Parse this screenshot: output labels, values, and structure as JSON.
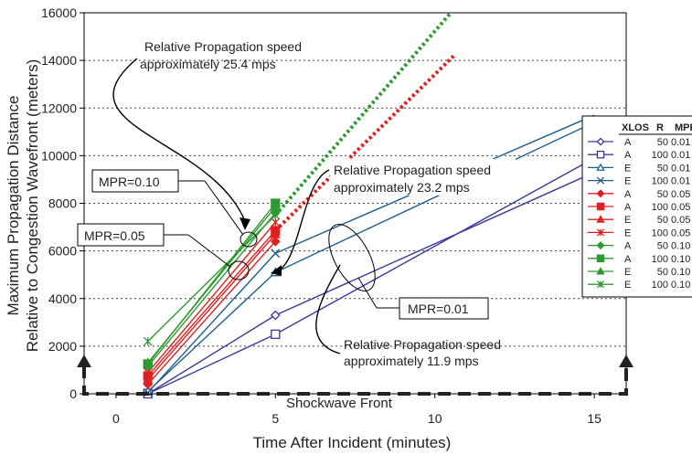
{
  "chart_data": {
    "type": "line",
    "xlabel": "Time After Incident (minutes)",
    "ylabel_line1": "Maximum Propagation Distance",
    "ylabel_line2": "Relative to Congestion Wavefront (meters)",
    "xlim": [
      -1,
      16
    ],
    "ylim": [
      0,
      16000
    ],
    "x_ticks": [
      0,
      5,
      10,
      15
    ],
    "y_ticks": [
      0,
      2000,
      4000,
      6000,
      8000,
      10000,
      12000,
      14000,
      16000
    ],
    "grid": "horizontal dotted",
    "legend": {
      "placement": "right",
      "headers": [
        "XLOS",
        "R",
        "MPR"
      ]
    },
    "series": [
      {
        "name": "A 50 0.01",
        "xlos": "A",
        "r": "50",
        "mpr": "0.01",
        "color": "#3a3a9c",
        "marker": "diamond-open",
        "points": [
          [
            1,
            0
          ],
          [
            5,
            3300
          ],
          [
            15,
            9300
          ]
        ]
      },
      {
        "name": "A 100 0.01",
        "xlos": "A",
        "r": "100",
        "mpr": "0.01",
        "color": "#3a3a9c",
        "marker": "square-open",
        "points": [
          [
            1,
            0
          ],
          [
            5,
            2500
          ],
          [
            15,
            9900
          ]
        ]
      },
      {
        "name": "E 50 0.01",
        "xlos": "E",
        "r": "50",
        "mpr": "0.01",
        "color": "#1f5f8b",
        "marker": "triangle-open",
        "points": [
          [
            1,
            100
          ],
          [
            5,
            5100
          ],
          [
            15,
            11400
          ]
        ]
      },
      {
        "name": "E 100 0.01",
        "xlos": "E",
        "r": "100",
        "mpr": "0.01",
        "color": "#1f5f8b",
        "marker": "x",
        "points": [
          [
            1,
            50
          ],
          [
            5,
            5900
          ],
          [
            15,
            11700
          ]
        ]
      },
      {
        "name": "A 50 0.05",
        "xlos": "A",
        "r": "50",
        "mpr": "0.05",
        "color": "#e02020",
        "marker": "diamond",
        "points": [
          [
            1,
            400
          ],
          [
            5,
            6400
          ]
        ]
      },
      {
        "name": "A 100 0.05",
        "xlos": "A",
        "r": "100",
        "mpr": "0.05",
        "color": "#e02020",
        "marker": "square",
        "points": [
          [
            1,
            750
          ],
          [
            5,
            6850
          ],
          [
            10.6,
            14200
          ]
        ]
      },
      {
        "name": "E 50 0.05",
        "xlos": "E",
        "r": "50",
        "mpr": "0.05",
        "color": "#e02020",
        "marker": "triangle",
        "points": [
          [
            1,
            600
          ],
          [
            5,
            6700
          ]
        ]
      },
      {
        "name": "E 100 0.05",
        "xlos": "E",
        "r": "100",
        "mpr": "0.05",
        "color": "#e02020",
        "marker": "asterisk",
        "points": [
          [
            1,
            900
          ],
          [
            5,
            7200
          ]
        ]
      },
      {
        "name": "A 50 0.10",
        "xlos": "A",
        "r": "50",
        "mpr": "0.10",
        "color": "#2f9a2f",
        "marker": "diamond",
        "points": [
          [
            1,
            1150
          ],
          [
            5,
            7600
          ]
        ]
      },
      {
        "name": "A 100 0.10",
        "xlos": "A",
        "r": "100",
        "mpr": "0.10",
        "color": "#2f9a2f",
        "marker": "square",
        "points": [
          [
            1,
            1250
          ],
          [
            5,
            8000
          ]
        ]
      },
      {
        "name": "E 50 0.10",
        "xlos": "E",
        "r": "50",
        "mpr": "0.10",
        "color": "#2f9a2f",
        "marker": "triangle",
        "points": [
          [
            1,
            1300
          ],
          [
            5,
            7850
          ]
        ]
      },
      {
        "name": "E 100 0.10",
        "xlos": "E",
        "r": "100",
        "mpr": "0.10",
        "color": "#2f9a2f",
        "marker": "asterisk",
        "points": [
          [
            1,
            2200
          ],
          [
            5,
            7500
          ],
          [
            10.5,
            16000
          ]
        ]
      }
    ],
    "annotations": {
      "speed_green": [
        "Relative Propagation speed",
        "approximately 25.4 mps"
      ],
      "speed_red": [
        "Relative Propagation speed",
        "approximately 23.2 mps"
      ],
      "speed_blue": [
        "Relative Propagation speed",
        "approximately 11.9 mps"
      ],
      "mpr_010": "MPR=0.10",
      "mpr_005": "MPR=0.05",
      "mpr_001": "MPR=0.01",
      "shockwave_front": "Shockwave Front"
    }
  }
}
